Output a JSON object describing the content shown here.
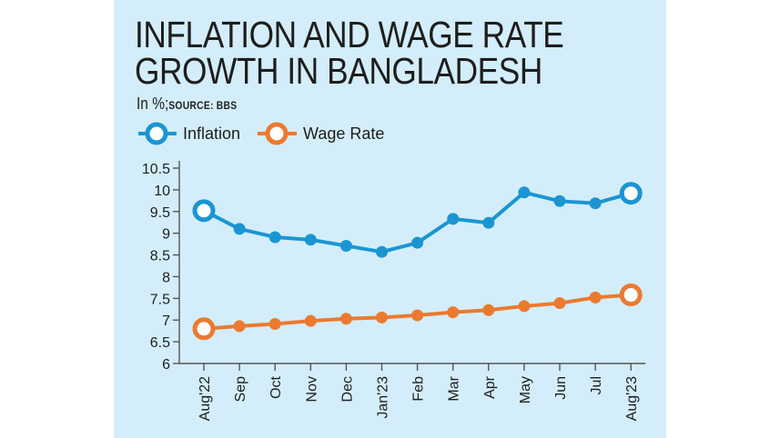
{
  "chart_data": {
    "type": "line",
    "title_lines": [
      "INFLATION AND WAGE RATE",
      "GROWTH IN BANGLADESH"
    ],
    "unit_label": "In %;",
    "source_label": "SOURCE: BBS",
    "categories": [
      "Aug'22",
      "Sep",
      "Oct",
      "Nov",
      "Dec",
      "Jan'23",
      "Feb",
      "Mar",
      "Apr",
      "May",
      "Jun",
      "Jul",
      "Aug'23"
    ],
    "series": [
      {
        "name": "Inflation",
        "color": "#1b95d2",
        "values": [
          9.52,
          9.1,
          8.91,
          8.85,
          8.71,
          8.57,
          8.78,
          9.33,
          9.24,
          9.94,
          9.74,
          9.69,
          9.92
        ]
      },
      {
        "name": "Wage Rate",
        "color": "#eb7a30",
        "values": [
          6.8,
          6.86,
          6.91,
          6.98,
          7.03,
          7.06,
          7.11,
          7.18,
          7.23,
          7.32,
          7.39,
          7.52,
          7.58
        ]
      }
    ],
    "yticks": [
      "10.5",
      "10",
      "9.5",
      "9",
      "8.5",
      "8",
      "7.5",
      "7",
      "6.5",
      "6"
    ],
    "ylim": [
      6,
      10.5
    ],
    "legend_position": "top-left",
    "grid": false,
    "colors": {
      "background": "#d3eefa",
      "axis": "#555555",
      "text": "#1e1e1e"
    }
  }
}
